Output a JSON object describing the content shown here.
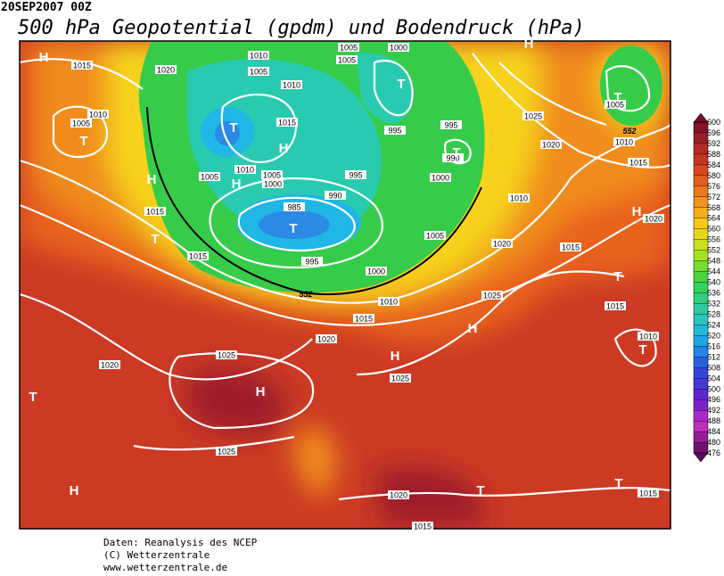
{
  "header": {
    "date": "20SEP2007 00Z",
    "title": "500 hPa Geopotential (gpdm) und Bodendruck (hPa)"
  },
  "map": {
    "pressure_labels": [
      "1015",
      "1020",
      "1010",
      "1005",
      "1005",
      "1000",
      "1005",
      "1010",
      "1015",
      "1010",
      "1005",
      "1005",
      "1010",
      "1005",
      "1000",
      "995",
      "990",
      "985",
      "995",
      "1000",
      "1005",
      "1010",
      "1000",
      "990",
      "995",
      "995",
      "1015",
      "1015",
      "1020",
      "1015",
      "1025",
      "1020",
      "1005",
      "1010",
      "1015",
      "1020",
      "1010",
      "1015",
      "1020",
      "1025",
      "1015",
      "1010",
      "1020",
      "1025",
      "1025",
      "1025",
      "1020",
      "1015",
      "1015"
    ],
    "centers": [
      "H",
      "T",
      "T",
      "H",
      "H",
      "T",
      "T",
      "H",
      "T",
      "H",
      "T",
      "T",
      "H",
      "T",
      "H",
      "H",
      "T",
      "T",
      "H",
      "H",
      "T",
      "T"
    ],
    "height_labels": [
      "552",
      "552"
    ]
  },
  "colorbar": {
    "ticks": [
      600,
      596,
      592,
      588,
      584,
      580,
      576,
      572,
      568,
      564,
      560,
      556,
      552,
      548,
      544,
      540,
      536,
      532,
      528,
      524,
      520,
      516,
      512,
      508,
      504,
      500,
      496,
      492,
      488,
      484,
      480,
      476
    ]
  },
  "footer": {
    "lines": [
      "Daten: Reanalysis des NCEP",
      "(C) Wetterzentrale",
      "www.wetterzentrale.de"
    ]
  }
}
